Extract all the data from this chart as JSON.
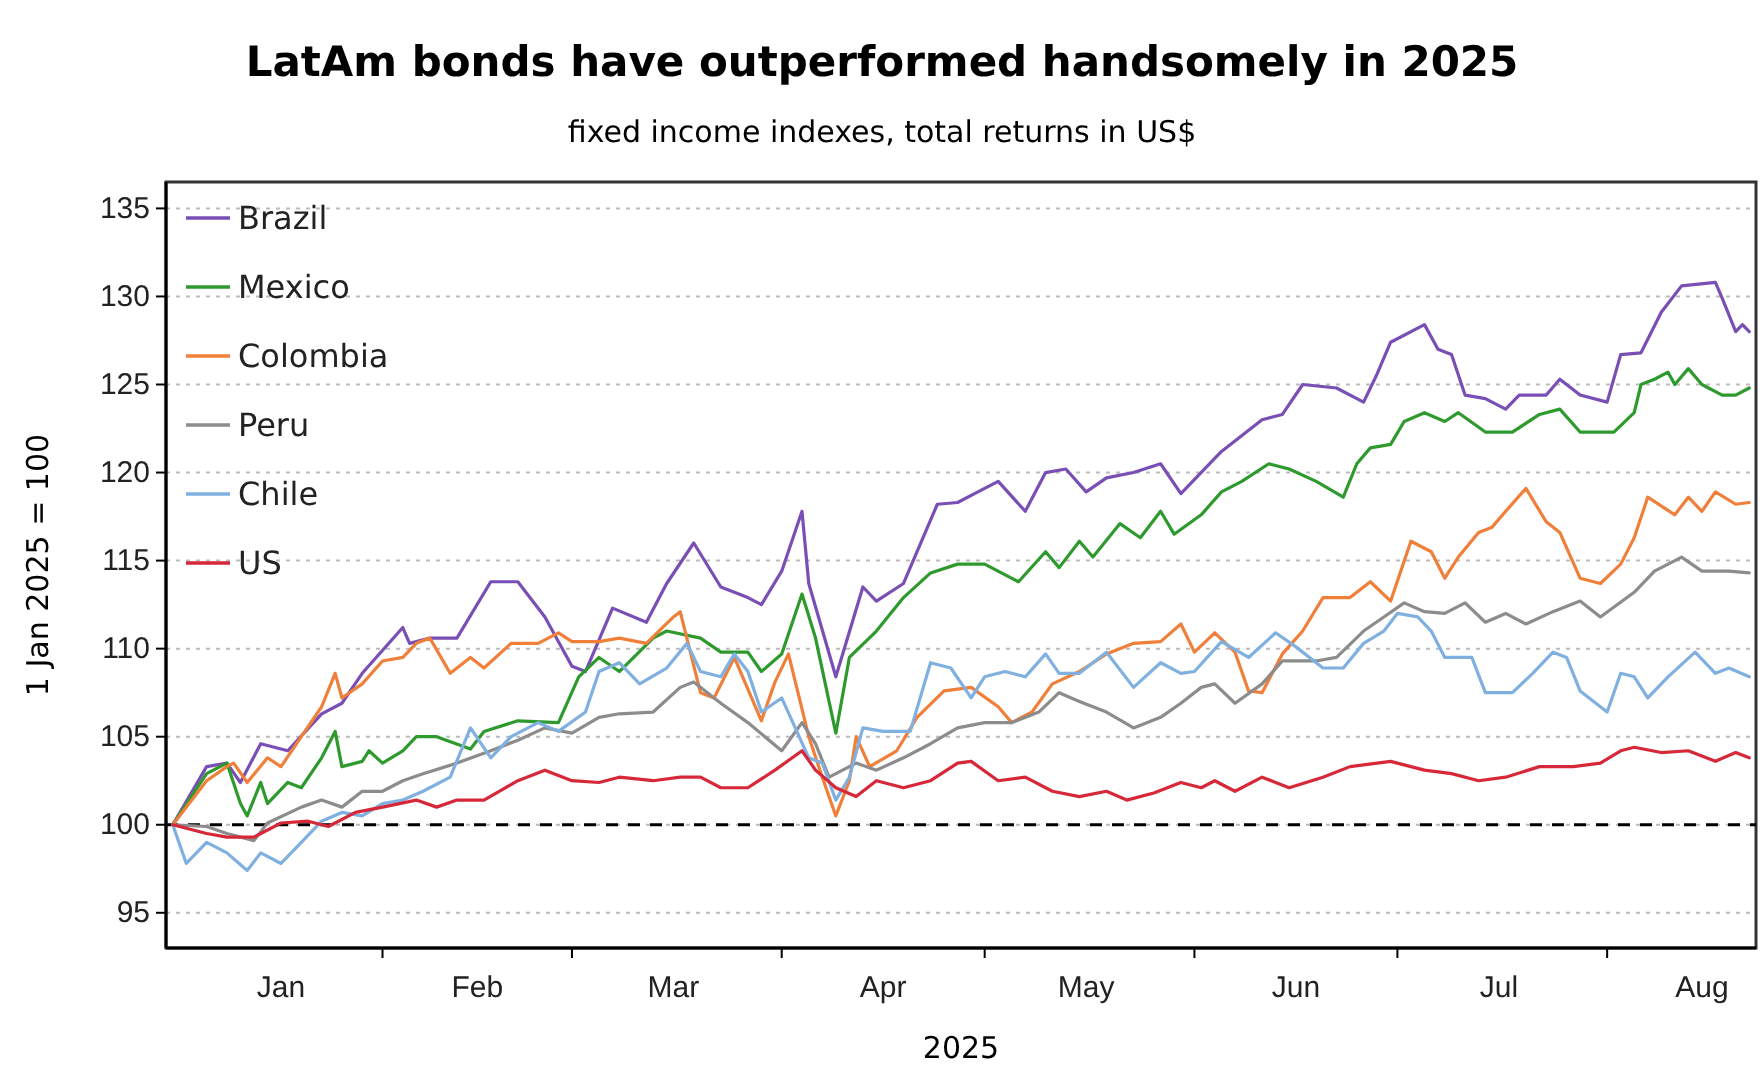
{
  "chart_data": {
    "type": "line",
    "title": "LatAm bonds have outperformed handsomely in 2025",
    "subtitle": "fixed income indexes, total returns in US$",
    "xlabel": "2025",
    "ylabel": "1 Jan 2025 = 100",
    "xlim": [
      "2024-12-31",
      "2025-08-23"
    ],
    "xticks": [
      {
        "value": "2025-02-01",
        "label": null
      },
      {
        "value": "2025-03-01",
        "label": null
      },
      {
        "value": "2025-04-01",
        "label": null
      },
      {
        "value": "2025-05-01",
        "label": null
      },
      {
        "value": "2025-06-01",
        "label": null
      },
      {
        "value": "2025-07-01",
        "label": null
      },
      {
        "value": "2025-08-01",
        "label": null
      },
      {
        "value": "2025-01-17",
        "label": "Jan"
      },
      {
        "value": "2025-02-15",
        "label": "Feb"
      },
      {
        "value": "2025-03-16",
        "label": "Mar"
      },
      {
        "value": "2025-04-16",
        "label": "Apr"
      },
      {
        "value": "2025-05-16",
        "label": "May"
      },
      {
        "value": "2025-06-16",
        "label": "Jun"
      },
      {
        "value": "2025-07-16",
        "label": "Jul"
      },
      {
        "value": "2025-08-15",
        "label": "Aug"
      }
    ],
    "ylim": [
      93,
      136.5
    ],
    "yticks": [
      95,
      100,
      105,
      110,
      115,
      120,
      125,
      130,
      135
    ],
    "grid": "y",
    "legend": "top left",
    "ref_lines": [
      {
        "axis": "y",
        "value": 100,
        "label": null,
        "color": "#000000",
        "line_style": "dashed"
      }
    ],
    "series": [
      {
        "name": "Brazil",
        "color": "#7a4fb5",
        "x": [
          "2025-01-01",
          "2025-01-06",
          "2025-01-09",
          "2025-01-11",
          "2025-01-14",
          "2025-01-18",
          "2025-01-23",
          "2025-01-26",
          "2025-01-29",
          "2025-02-04",
          "2025-02-05",
          "2025-02-08",
          "2025-02-12",
          "2025-02-17",
          "2025-02-21",
          "2025-02-25",
          "2025-03-01",
          "2025-03-03",
          "2025-03-07",
          "2025-03-12",
          "2025-03-15",
          "2025-03-19",
          "2025-03-23",
          "2025-03-27",
          "2025-03-29",
          "2025-04-01",
          "2025-04-04",
          "2025-04-05",
          "2025-04-09",
          "2025-04-13",
          "2025-04-15",
          "2025-04-19",
          "2025-04-24",
          "2025-04-27",
          "2025-04-30",
          "2025-05-03",
          "2025-05-07",
          "2025-05-10",
          "2025-05-13",
          "2025-05-16",
          "2025-05-19",
          "2025-05-23",
          "2025-05-27",
          "2025-05-30",
          "2025-06-04",
          "2025-06-05",
          "2025-06-11",
          "2025-06-14",
          "2025-06-17",
          "2025-06-22",
          "2025-06-26",
          "2025-06-28",
          "2025-06-30",
          "2025-07-05",
          "2025-07-07",
          "2025-07-09",
          "2025-07-11",
          "2025-07-14",
          "2025-07-17",
          "2025-07-19",
          "2025-07-23",
          "2025-07-25",
          "2025-07-28",
          "2025-08-01",
          "2025-08-03",
          "2025-08-06",
          "2025-08-09",
          "2025-08-12",
          "2025-08-17",
          "2025-08-18",
          "2025-08-20",
          "2025-08-21",
          "2025-08-22"
        ],
        "values": [
          100,
          103.3,
          103.5,
          102.4,
          104.6,
          104.2,
          106.3,
          106.9,
          108.6,
          111.2,
          110.3,
          110.6,
          110.6,
          113.8,
          113.8,
          111.8,
          109,
          108.7,
          112.3,
          111.5,
          113.7,
          116,
          113.5,
          112.9,
          112.5,
          114.4,
          117.8,
          113.7,
          108.4,
          113.5,
          112.7,
          113.7,
          118.2,
          118.3,
          118.9,
          119.5,
          117.8,
          120,
          120.2,
          118.9,
          119.7,
          120,
          120.5,
          118.8,
          120.8,
          121.2,
          123,
          123.3,
          125,
          124.8,
          124,
          125.6,
          127.4,
          128.4,
          127,
          126.7,
          124.4,
          124.2,
          123.6,
          124.4,
          124.4,
          125.3,
          124.4,
          124,
          126.7,
          126.8,
          129.1,
          130.6,
          130.8,
          129.9,
          128,
          128.4,
          128
        ]
      },
      {
        "name": "Mexico",
        "color": "#2e9a2e",
        "x": [
          "2025-01-01",
          "2025-01-06",
          "2025-01-09",
          "2025-01-11",
          "2025-01-12",
          "2025-01-14",
          "2025-01-15",
          "2025-01-18",
          "2025-01-20",
          "2025-01-23",
          "2025-01-25",
          "2025-01-26",
          "2025-01-29",
          "2025-01-30",
          "2025-02-01",
          "2025-02-04",
          "2025-02-06",
          "2025-02-09",
          "2025-02-14",
          "2025-02-16",
          "2025-02-21",
          "2025-02-27",
          "2025-03-02",
          "2025-03-05",
          "2025-03-08",
          "2025-03-13",
          "2025-03-15",
          "2025-03-20",
          "2025-03-23",
          "2025-03-27",
          "2025-03-29",
          "2025-04-01",
          "2025-04-04",
          "2025-04-06",
          "2025-04-09",
          "2025-04-11",
          "2025-04-15",
          "2025-04-19",
          "2025-04-23",
          "2025-04-27",
          "2025-05-01",
          "2025-05-06",
          "2025-05-10",
          "2025-05-12",
          "2025-05-15",
          "2025-05-17",
          "2025-05-21",
          "2025-05-24",
          "2025-05-27",
          "2025-05-29",
          "2025-06-02",
          "2025-06-05",
          "2025-06-08",
          "2025-06-12",
          "2025-06-15",
          "2025-06-19",
          "2025-06-23",
          "2025-06-25",
          "2025-06-27",
          "2025-06-30",
          "2025-07-02",
          "2025-07-05",
          "2025-07-08",
          "2025-07-10",
          "2025-07-14",
          "2025-07-18",
          "2025-07-22",
          "2025-07-25",
          "2025-07-28",
          "2025-08-02",
          "2025-08-05",
          "2025-08-06",
          "2025-08-08",
          "2025-08-10",
          "2025-08-11",
          "2025-08-13",
          "2025-08-15",
          "2025-08-18",
          "2025-08-20",
          "2025-08-22"
        ],
        "values": [
          100,
          102.9,
          103.5,
          101.2,
          100.5,
          102.4,
          101.2,
          102.4,
          102.1,
          103.8,
          105.3,
          103.3,
          103.6,
          104.2,
          103.5,
          104.2,
          105,
          105,
          104.3,
          105.3,
          105.9,
          105.8,
          108.4,
          109.5,
          108.7,
          110.6,
          111,
          110.6,
          109.8,
          109.8,
          108.7,
          109.7,
          113.1,
          110.6,
          105.2,
          109.5,
          111,
          112.9,
          114.3,
          114.8,
          114.8,
          113.8,
          115.5,
          114.6,
          116.1,
          115.2,
          117.1,
          116.3,
          117.8,
          116.5,
          117.6,
          118.9,
          119.5,
          120.5,
          120.2,
          119.5,
          118.6,
          120.5,
          121.4,
          121.6,
          122.9,
          123.4,
          122.9,
          123.4,
          122.3,
          122.3,
          123.3,
          123.6,
          122.3,
          122.3,
          123.4,
          125,
          125.3,
          125.7,
          125,
          125.9,
          125,
          124.4,
          124.4,
          124.8
        ]
      },
      {
        "name": "Colombia",
        "color": "#f07f3a",
        "x": [
          "2025-01-01",
          "2025-01-06",
          "2025-01-09",
          "2025-01-10",
          "2025-01-12",
          "2025-01-15",
          "2025-01-17",
          "2025-01-20",
          "2025-01-23",
          "2025-01-25",
          "2025-01-26",
          "2025-01-29",
          "2025-02-01",
          "2025-02-04",
          "2025-02-06",
          "2025-02-08",
          "2025-02-11",
          "2025-02-14",
          "2025-02-16",
          "2025-02-20",
          "2025-02-24",
          "2025-02-27",
          "2025-03-01",
          "2025-03-05",
          "2025-03-08",
          "2025-03-12",
          "2025-03-16",
          "2025-03-17",
          "2025-03-20",
          "2025-03-22",
          "2025-03-25",
          "2025-03-29",
          "2025-03-31",
          "2025-04-02",
          "2025-04-05",
          "2025-04-07",
          "2025-04-09",
          "2025-04-11",
          "2025-04-12",
          "2025-04-14",
          "2025-04-18",
          "2025-04-21",
          "2025-04-25",
          "2025-04-29",
          "2025-05-03",
          "2025-05-05",
          "2025-05-08",
          "2025-05-11",
          "2025-05-15",
          "2025-05-19",
          "2025-05-23",
          "2025-05-27",
          "2025-05-30",
          "2025-06-01",
          "2025-06-04",
          "2025-06-07",
          "2025-06-09",
          "2025-06-11",
          "2025-06-14",
          "2025-06-17",
          "2025-06-20",
          "2025-06-24",
          "2025-06-27",
          "2025-06-30",
          "2025-07-03",
          "2025-07-06",
          "2025-07-08",
          "2025-07-10",
          "2025-07-13",
          "2025-07-15",
          "2025-07-17",
          "2025-07-20",
          "2025-07-23",
          "2025-07-25",
          "2025-07-28",
          "2025-07-31",
          "2025-08-03",
          "2025-08-05",
          "2025-08-07",
          "2025-08-11",
          "2025-08-13",
          "2025-08-15",
          "2025-08-17",
          "2025-08-20",
          "2025-08-22"
        ],
        "values": [
          100,
          102.5,
          103.3,
          103.5,
          102.4,
          103.8,
          103.3,
          105,
          106.7,
          108.6,
          107.2,
          108,
          109.3,
          109.5,
          110.3,
          110.6,
          108.6,
          109.5,
          108.9,
          110.3,
          110.3,
          110.9,
          110.4,
          110.4,
          110.6,
          110.3,
          111.8,
          112.1,
          107.5,
          107.2,
          109.5,
          105.9,
          108.1,
          109.7,
          105,
          102.7,
          100.5,
          102.5,
          105,
          103.3,
          104.2,
          106.1,
          107.6,
          107.8,
          106.7,
          105.8,
          106.4,
          108,
          108.7,
          109.7,
          110.3,
          110.4,
          111.4,
          109.8,
          110.9,
          109.8,
          107.6,
          107.5,
          109.7,
          111,
          112.9,
          112.9,
          113.8,
          112.7,
          116.1,
          115.5,
          114,
          115.2,
          116.6,
          116.9,
          117.8,
          119.1,
          117.2,
          116.6,
          114,
          113.7,
          114.8,
          116.3,
          118.6,
          117.6,
          118.6,
          117.8,
          118.9,
          118.2,
          118.3
        ]
      },
      {
        "name": "Peru",
        "color": "#8c8c8c",
        "x": [
          "2025-01-01",
          "2025-01-06",
          "2025-01-09",
          "2025-01-13",
          "2025-01-15",
          "2025-01-20",
          "2025-01-23",
          "2025-01-26",
          "2025-01-29",
          "2025-02-01",
          "2025-02-04",
          "2025-02-07",
          "2025-02-12",
          "2025-02-17",
          "2025-02-21",
          "2025-02-25",
          "2025-03-01",
          "2025-03-05",
          "2025-03-08",
          "2025-03-13",
          "2025-03-17",
          "2025-03-19",
          "2025-03-23",
          "2025-03-27",
          "2025-04-01",
          "2025-04-04",
          "2025-04-06",
          "2025-04-08",
          "2025-04-12",
          "2025-04-15",
          "2025-04-19",
          "2025-04-23",
          "2025-04-27",
          "2025-05-01",
          "2025-05-05",
          "2025-05-09",
          "2025-05-12",
          "2025-05-15",
          "2025-05-19",
          "2025-05-23",
          "2025-05-27",
          "2025-05-30",
          "2025-06-02",
          "2025-06-04",
          "2025-06-07",
          "2025-06-11",
          "2025-06-14",
          "2025-06-19",
          "2025-06-22",
          "2025-06-26",
          "2025-06-29",
          "2025-07-02",
          "2025-07-05",
          "2025-07-08",
          "2025-07-11",
          "2025-07-14",
          "2025-07-17",
          "2025-07-20",
          "2025-07-24",
          "2025-07-28",
          "2025-07-31",
          "2025-08-05",
          "2025-08-08",
          "2025-08-12",
          "2025-08-15",
          "2025-08-19",
          "2025-08-22"
        ],
        "values": [
          100,
          99.9,
          99.5,
          99.1,
          100.1,
          101,
          101.4,
          101,
          101.9,
          101.9,
          102.5,
          102.9,
          103.5,
          104.2,
          104.8,
          105.5,
          105.2,
          106.1,
          106.3,
          106.4,
          107.8,
          108.1,
          106.9,
          105.8,
          104.2,
          105.8,
          104.6,
          102.7,
          103.5,
          103.1,
          103.8,
          104.6,
          105.5,
          105.8,
          105.8,
          106.4,
          107.5,
          107,
          106.4,
          105.5,
          106.1,
          106.9,
          107.8,
          108,
          106.9,
          108,
          109.3,
          109.3,
          109.5,
          111,
          111.8,
          112.6,
          112.1,
          112,
          112.6,
          111.5,
          112,
          111.4,
          112.1,
          112.7,
          111.8,
          113.2,
          114.4,
          115.2,
          114.4,
          114.4,
          114.3
        ]
      },
      {
        "name": "Chile",
        "color": "#7fb0e0",
        "x": [
          "2025-01-01",
          "2025-01-03",
          "2025-01-06",
          "2025-01-09",
          "2025-01-12",
          "2025-01-14",
          "2025-01-17",
          "2025-01-20",
          "2025-01-23",
          "2025-01-26",
          "2025-01-29",
          "2025-02-01",
          "2025-02-04",
          "2025-02-07",
          "2025-02-11",
          "2025-02-14",
          "2025-02-17",
          "2025-02-20",
          "2025-02-24",
          "2025-02-27",
          "2025-03-03",
          "2025-03-05",
          "2025-03-08",
          "2025-03-11",
          "2025-03-15",
          "2025-03-18",
          "2025-03-20",
          "2025-03-23",
          "2025-03-25",
          "2025-03-27",
          "2025-03-29",
          "2025-04-01",
          "2025-04-05",
          "2025-04-07",
          "2025-04-09",
          "2025-04-11",
          "2025-04-13",
          "2025-04-16",
          "2025-04-20",
          "2025-04-23",
          "2025-04-26",
          "2025-04-29",
          "2025-05-01",
          "2025-05-04",
          "2025-05-07",
          "2025-05-10",
          "2025-05-12",
          "2025-05-15",
          "2025-05-19",
          "2025-05-23",
          "2025-05-27",
          "2025-05-30",
          "2025-06-01",
          "2025-06-05",
          "2025-06-09",
          "2025-06-13",
          "2025-06-16",
          "2025-06-20",
          "2025-06-23",
          "2025-06-26",
          "2025-06-29",
          "2025-07-01",
          "2025-07-04",
          "2025-07-06",
          "2025-07-08",
          "2025-07-12",
          "2025-07-14",
          "2025-07-18",
          "2025-07-21",
          "2025-07-24",
          "2025-07-26",
          "2025-07-28",
          "2025-08-01",
          "2025-08-03",
          "2025-08-05",
          "2025-08-07",
          "2025-08-10",
          "2025-08-14",
          "2025-08-17",
          "2025-08-19",
          "2025-08-22"
        ],
        "values": [
          100,
          97.8,
          99,
          98.4,
          97.4,
          98.4,
          97.8,
          99,
          100.2,
          100.7,
          100.5,
          101.2,
          101.4,
          101.9,
          102.7,
          105.5,
          103.8,
          105,
          105.8,
          105.3,
          106.4,
          108.7,
          109.2,
          108,
          108.9,
          110.3,
          108.7,
          108.4,
          109.7,
          108.7,
          106.4,
          107.2,
          103.8,
          103.5,
          101.4,
          102.7,
          105.5,
          105.3,
          105.3,
          109.2,
          108.9,
          107.2,
          108.4,
          108.7,
          108.4,
          109.7,
          108.6,
          108.6,
          109.8,
          107.8,
          109.2,
          108.6,
          108.7,
          110.4,
          109.5,
          110.9,
          110.1,
          108.9,
          108.9,
          110.3,
          111,
          112,
          111.8,
          111,
          109.5,
          109.5,
          107.5,
          107.5,
          108.6,
          109.8,
          109.5,
          107.6,
          106.4,
          108.6,
          108.4,
          107.2,
          108.4,
          109.8,
          108.6,
          108.9,
          108.4
        ]
      },
      {
        "name": "US",
        "color": "#d62839",
        "x": [
          "2025-01-01",
          "2025-01-06",
          "2025-01-09",
          "2025-01-13",
          "2025-01-17",
          "2025-01-21",
          "2025-01-24",
          "2025-01-28",
          "2025-02-01",
          "2025-02-06",
          "2025-02-09",
          "2025-02-12",
          "2025-02-16",
          "2025-02-21",
          "2025-02-25",
          "2025-03-01",
          "2025-03-05",
          "2025-03-08",
          "2025-03-13",
          "2025-03-17",
          "2025-03-20",
          "2025-03-23",
          "2025-03-27",
          "2025-03-31",
          "2025-04-04",
          "2025-04-06",
          "2025-04-09",
          "2025-04-12",
          "2025-04-15",
          "2025-04-19",
          "2025-04-23",
          "2025-04-27",
          "2025-04-29",
          "2025-05-03",
          "2025-05-07",
          "2025-05-11",
          "2025-05-15",
          "2025-05-19",
          "2025-05-22",
          "2025-05-26",
          "2025-05-30",
          "2025-06-02",
          "2025-06-04",
          "2025-06-07",
          "2025-06-11",
          "2025-06-15",
          "2025-06-20",
          "2025-06-24",
          "2025-06-30",
          "2025-07-05",
          "2025-07-09",
          "2025-07-13",
          "2025-07-17",
          "2025-07-22",
          "2025-07-27",
          "2025-07-31",
          "2025-08-03",
          "2025-08-05",
          "2025-08-09",
          "2025-08-13",
          "2025-08-17",
          "2025-08-20",
          "2025-08-22"
        ],
        "values": [
          100,
          99.5,
          99.3,
          99.3,
          100.1,
          100.2,
          99.9,
          100.7,
          101,
          101.4,
          101,
          101.4,
          101.4,
          102.5,
          103.1,
          102.5,
          102.4,
          102.7,
          102.5,
          102.7,
          102.7,
          102.1,
          102.1,
          103.1,
          104.2,
          103.1,
          102.1,
          101.6,
          102.5,
          102.1,
          102.5,
          103.5,
          103.6,
          102.5,
          102.7,
          101.9,
          101.6,
          101.9,
          101.4,
          101.8,
          102.4,
          102.1,
          102.5,
          101.9,
          102.7,
          102.1,
          102.7,
          103.3,
          103.6,
          103.1,
          102.9,
          102.5,
          102.7,
          103.3,
          103.3,
          103.5,
          104.2,
          104.4,
          104.1,
          104.2,
          103.6,
          104.1,
          103.8
        ]
      }
    ]
  }
}
